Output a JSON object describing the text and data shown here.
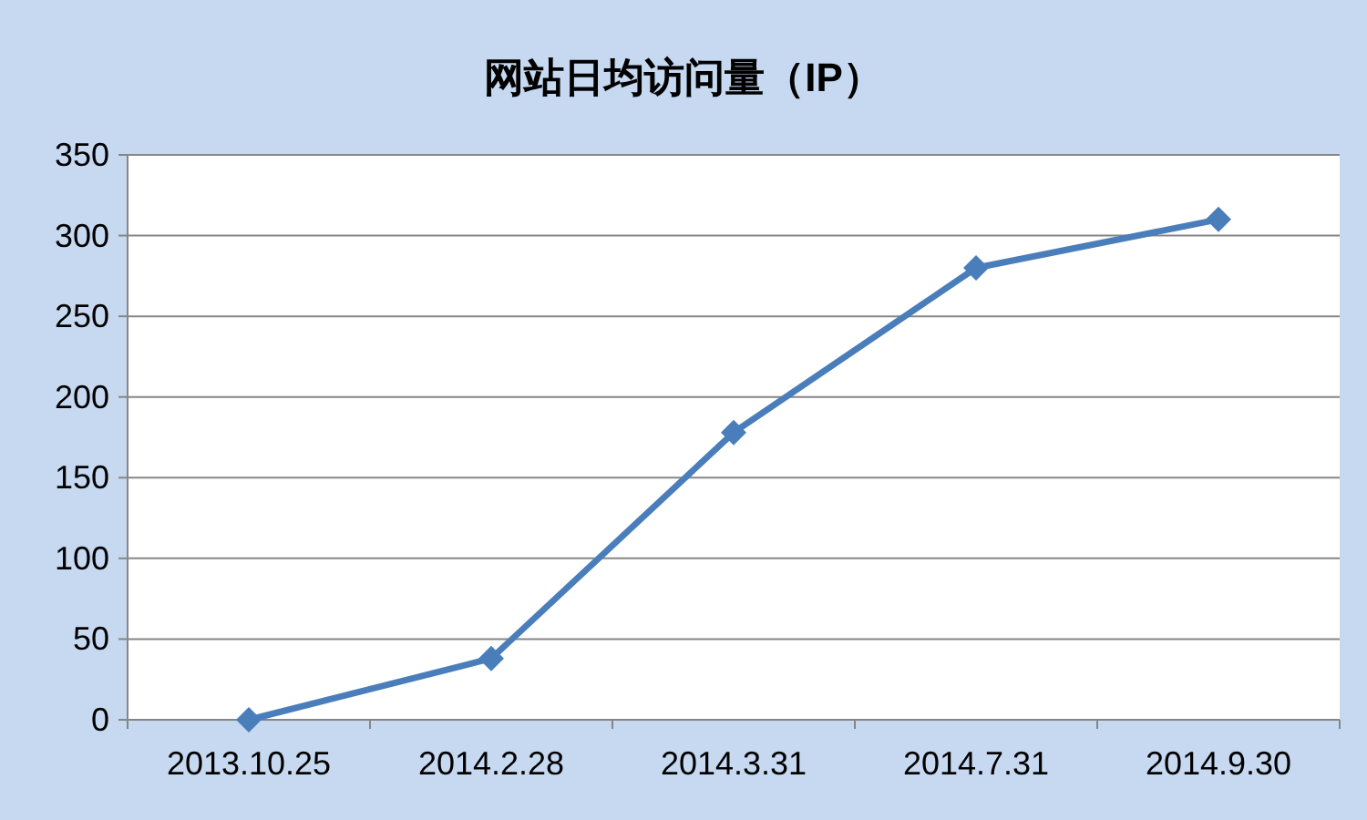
{
  "chart_data": {
    "type": "line",
    "title": "网站日均访问量（IP）",
    "categories": [
      "2013.10.25",
      "2014.2.28",
      "2014.3.31",
      "2014.7.31",
      "2014.9.30"
    ],
    "series": [
      {
        "color": "#4a7ebb",
        "values": [
          0,
          38,
          178,
          280,
          310
        ]
      }
    ],
    "ylim": [
      0,
      350
    ],
    "yticks": [
      0,
      50,
      100,
      150,
      200,
      250,
      300,
      350
    ],
    "grid": "y",
    "marker": "diamond",
    "line_style": "solid"
  }
}
